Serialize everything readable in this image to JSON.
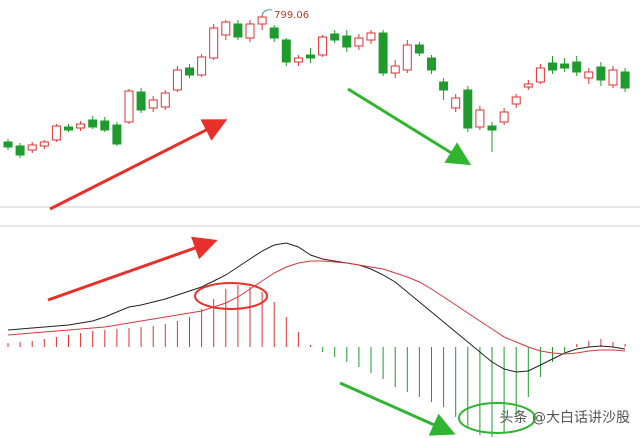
{
  "chart_data": [
    {
      "type": "candlestick",
      "ylim": [
        609,
        814
      ],
      "up_color": "#e0312f",
      "down_color": "#1f9b2e",
      "annotation": "799.06",
      "annotation_color": "#c0392b",
      "open": [
        672,
        668,
        664,
        668,
        674,
        687,
        686,
        694,
        693,
        689,
        692,
        722,
        706,
        707,
        724,
        746,
        739,
        756,
        779,
        790,
        776,
        790,
        786,
        774,
        752,
        759,
        759,
        780,
        778,
        768,
        774,
        781,
        741,
        744,
        769,
        756,
        732,
        706,
        724,
        687,
        688,
        692,
        710,
        727,
        732,
        751,
        750,
        752,
        736,
        747,
        729,
        742
      ],
      "high": [
        675,
        671,
        672,
        674,
        690,
        690,
        693,
        698,
        697,
        692,
        725,
        726,
        718,
        724,
        748,
        750,
        760,
        790,
        794,
        794,
        794,
        799.06,
        789,
        776,
        759,
        766,
        779,
        784,
        784,
        780,
        784,
        784,
        754,
        774,
        772,
        759,
        736,
        720,
        728,
        708,
        692,
        706,
        720,
        734,
        750,
        758,
        756,
        758,
        746,
        752,
        748,
        746
      ],
      "low": [
        664,
        656,
        661,
        665,
        672,
        682,
        683,
        685,
        682,
        668,
        690,
        701,
        702,
        704,
        722,
        736,
        737,
        754,
        774,
        774,
        772,
        784,
        772,
        748,
        748,
        751,
        757,
        771,
        762,
        764,
        770,
        738,
        736,
        741,
        758,
        740,
        714,
        702,
        682,
        684,
        662,
        689,
        706,
        724,
        730,
        740,
        742,
        738,
        730,
        728,
        726,
        722
      ],
      "close": [
        667,
        659,
        669,
        672,
        688,
        684,
        690,
        687,
        684,
        670,
        723,
        704,
        714,
        721,
        744,
        739,
        757,
        786,
        792,
        777,
        790,
        797,
        776,
        752,
        756,
        756,
        777,
        774,
        767,
        776,
        781,
        741,
        748,
        769,
        761,
        744,
        724,
        716,
        686,
        704,
        684,
        702,
        717,
        730,
        746,
        744,
        746,
        742,
        742,
        734,
        744,
        726
      ]
    },
    {
      "type": "macd",
      "ylim": [
        -91,
        119
      ],
      "histogram": {
        "up_color": "#e0312f",
        "down_color": "#1f9b2e",
        "values": [
          4,
          5,
          6,
          8,
          10,
          12,
          14,
          16,
          17,
          18,
          19,
          20,
          21,
          23,
          26,
          30,
          38,
          48,
          58,
          62,
          60,
          55,
          45,
          30,
          15,
          2,
          -5,
          -10,
          -15,
          -20,
          -26,
          -32,
          -40,
          -45,
          -50,
          -55,
          -60,
          -70,
          -80,
          -88,
          -90,
          -85,
          -70,
          -50,
          -30,
          -15,
          -5,
          3,
          6,
          8,
          5,
          3
        ]
      },
      "lines": [
        {
          "color": "#222222",
          "values": [
            17,
            18,
            19,
            20,
            21,
            22,
            24,
            26,
            30,
            35,
            40,
            42,
            45,
            48,
            52,
            56,
            60,
            66,
            72,
            80,
            88,
            96,
            102,
            104,
            100,
            92,
            88,
            86,
            84,
            82,
            78,
            72,
            65,
            55,
            45,
            35,
            25,
            15,
            5,
            -5,
            -15,
            -22,
            -25,
            -24,
            -18,
            -12,
            -6,
            -2,
            0,
            1,
            0,
            -2
          ]
        },
        {
          "color": "#d9363e",
          "values": [
            12,
            13,
            14,
            15,
            16,
            17,
            18,
            19,
            20,
            22,
            24,
            26,
            28,
            30,
            32,
            34,
            36,
            40,
            44,
            50,
            58,
            66,
            74,
            80,
            84,
            86,
            86,
            85,
            84,
            82,
            80,
            78,
            74,
            70,
            65,
            58,
            50,
            42,
            34,
            26,
            18,
            10,
            5,
            0,
            -4,
            -6,
            -7,
            -6,
            -4,
            -3,
            -3,
            -4
          ]
        }
      ]
    }
  ],
  "watermark": "头条 @大白话讲沙股"
}
